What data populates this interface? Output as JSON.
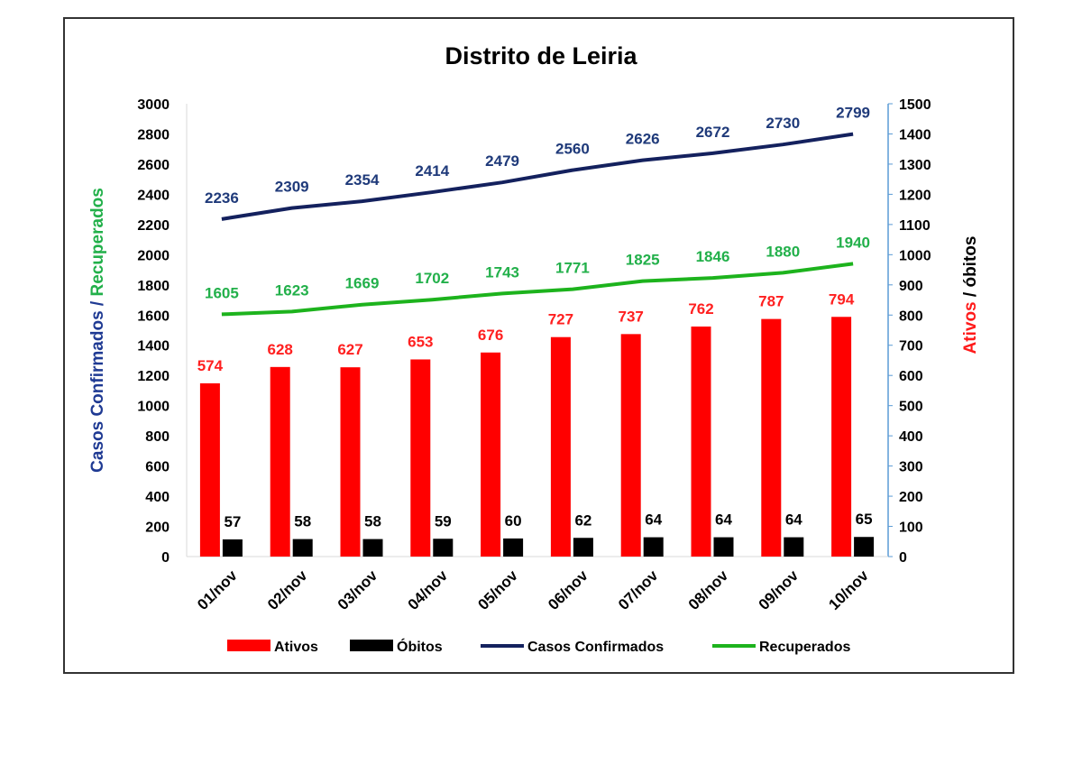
{
  "chart_data": {
    "type": "bar",
    "title": "Distrito de Leiria",
    "categories": [
      "01/nov",
      "02/nov",
      "03/nov",
      "04/nov",
      "05/nov",
      "06/nov",
      "07/nov",
      "08/nov",
      "09/nov",
      "10/nov"
    ],
    "left_axis": {
      "title_parts": [
        {
          "text": "Casos Confirmados / ",
          "color": "#1f3a93"
        },
        {
          "text": "Recuperados",
          "color": "#22b04a"
        }
      ],
      "ylim": [
        0,
        3000
      ],
      "ticks": [
        0,
        200,
        400,
        600,
        800,
        1000,
        1200,
        1400,
        1600,
        1800,
        2000,
        2200,
        2400,
        2600,
        2800,
        3000
      ]
    },
    "right_axis": {
      "title_parts": [
        {
          "text": "Ativos",
          "color": "#ff1a1a"
        },
        {
          "text": " / óbitos",
          "color": "#000000"
        }
      ],
      "ylim": [
        0,
        1500
      ],
      "ticks": [
        0,
        100,
        200,
        300,
        400,
        500,
        600,
        700,
        800,
        900,
        1000,
        1100,
        1200,
        1300,
        1400,
        1500
      ]
    },
    "series": [
      {
        "name": "Ativos",
        "kind": "bar",
        "axis": "right",
        "color": "#ff0000",
        "label_color": "#ff2020",
        "values": [
          574,
          628,
          627,
          653,
          676,
          727,
          737,
          762,
          787,
          794
        ]
      },
      {
        "name": "Óbitos",
        "kind": "bar",
        "axis": "right",
        "color": "#000000",
        "label_color": "#000000",
        "values": [
          57,
          58,
          58,
          59,
          60,
          62,
          64,
          64,
          64,
          65
        ]
      },
      {
        "name": "Casos Confirmados",
        "kind": "line",
        "axis": "left",
        "color": "#14215e",
        "label_color": "#1f3a7a",
        "values": [
          2236,
          2309,
          2354,
          2414,
          2479,
          2560,
          2626,
          2672,
          2730,
          2799
        ]
      },
      {
        "name": "Recuperados",
        "kind": "line",
        "axis": "left",
        "color": "#1db31d",
        "label_color": "#22b04a",
        "values": [
          1605,
          1623,
          1669,
          1702,
          1743,
          1771,
          1825,
          1846,
          1880,
          1940
        ]
      }
    ],
    "legend": {
      "position": "bottom",
      "entries": [
        "Ativos",
        "Óbitos",
        "Casos Confirmados",
        "Recuperados"
      ]
    },
    "grid": false
  }
}
